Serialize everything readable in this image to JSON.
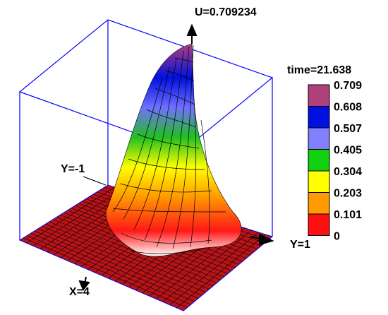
{
  "chart_data": {
    "type": "surface",
    "title": "U=0.709234",
    "time_label": "time=21.638",
    "axis_labels": {
      "y_start": "Y=-1",
      "y_end": "Y=1",
      "x_end": "X=4"
    },
    "max_value": 0.709234,
    "colorbar": {
      "ticks": [
        "0.709",
        "0.608",
        "0.507",
        "0.405",
        "0.304",
        "0.203",
        "0.101",
        "0"
      ],
      "colors": [
        "#b0407a",
        "#0010e0",
        "#8080ff",
        "#10d010",
        "#ffff00",
        "#ff9a00",
        "#ff1010"
      ]
    },
    "surface_colors": {
      "base": "#b81418",
      "grid": "#000000",
      "box": "#0000ff"
    }
  }
}
